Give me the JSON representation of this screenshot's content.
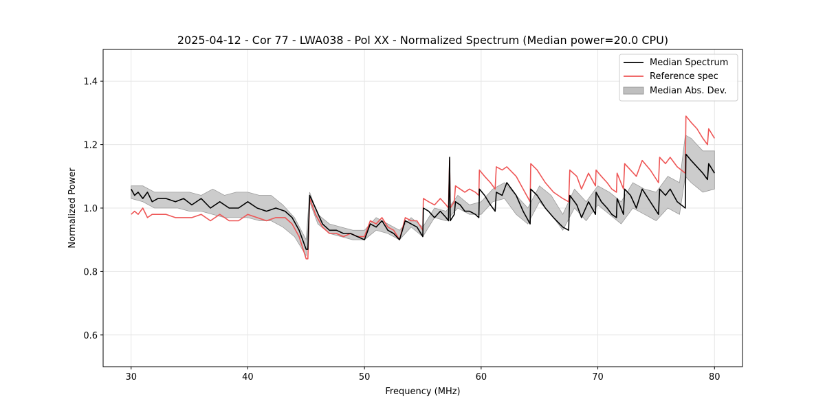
{
  "chart_data": {
    "type": "line",
    "title": "2025-04-12 - Cor 77 - LWA038 - Pol XX - Normalized Spectrum (Median power=20.0 CPU)",
    "xlabel": "Frequency (MHz)",
    "ylabel": "Normalized Power",
    "xlim": [
      27.6,
      82.4
    ],
    "ylim": [
      0.5,
      1.5
    ],
    "xticks": [
      30,
      40,
      50,
      60,
      70,
      80
    ],
    "xtick_labels": [
      "30",
      "40",
      "50",
      "60",
      "70",
      "80"
    ],
    "yticks": [
      0.6,
      0.8,
      1.0,
      1.2,
      1.4
    ],
    "ytick_labels": [
      "0.6",
      "0.8",
      "1.0",
      "1.2",
      "1.4"
    ],
    "grid": true,
    "legend_position": "top-right",
    "colors": {
      "median": "#000000",
      "reference": "#ee5555",
      "mad_fill": "#bfbfbf",
      "mad_edge": "#9a9a9a"
    },
    "series": [
      {
        "name": "Median Spectrum",
        "x": [
          30.0,
          30.3,
          30.6,
          31.0,
          31.4,
          31.8,
          32.3,
          33.0,
          33.8,
          34.5,
          35.2,
          36.0,
          36.8,
          37.6,
          38.4,
          39.2,
          40.0,
          40.8,
          41.6,
          42.4,
          43.2,
          43.8,
          44.4,
          45.0,
          45.15,
          45.3,
          45.8,
          46.4,
          47.0,
          47.6,
          48.2,
          48.8,
          49.4,
          50.0,
          50.5,
          51.0,
          51.5,
          52.0,
          52.5,
          53.0,
          53.5,
          54.0,
          54.5,
          55.0,
          55.05,
          55.5,
          56.0,
          56.5,
          57.0,
          57.2,
          57.3,
          57.35,
          57.7,
          57.8,
          58.2,
          58.6,
          59.0,
          59.5,
          59.8,
          59.85,
          60.3,
          60.8,
          61.2,
          61.3,
          61.8,
          62.2,
          63.0,
          63.6,
          64.2,
          64.25,
          64.8,
          65.5,
          66.2,
          67.0,
          67.5,
          67.6,
          68.2,
          68.6,
          69.2,
          69.8,
          69.85,
          70.3,
          70.8,
          71.2,
          71.6,
          71.65,
          72.2,
          72.3,
          72.8,
          73.3,
          73.8,
          74.5,
          75.2,
          75.3,
          75.8,
          76.2,
          76.8,
          77.5,
          77.55,
          78.0,
          78.5,
          79.0,
          79.4,
          79.5,
          80.0
        ],
        "values": [
          1.06,
          1.04,
          1.05,
          1.03,
          1.05,
          1.02,
          1.03,
          1.03,
          1.02,
          1.03,
          1.01,
          1.03,
          1.0,
          1.02,
          1.0,
          1.0,
          1.02,
          1.0,
          0.99,
          1.0,
          0.99,
          0.97,
          0.93,
          0.87,
          0.87,
          1.04,
          1.0,
          0.95,
          0.93,
          0.93,
          0.92,
          0.92,
          0.91,
          0.9,
          0.95,
          0.94,
          0.96,
          0.93,
          0.92,
          0.9,
          0.96,
          0.95,
          0.94,
          0.91,
          1.0,
          0.99,
          0.97,
          0.99,
          0.97,
          0.96,
          1.16,
          0.96,
          0.98,
          1.02,
          1.01,
          0.99,
          0.99,
          0.98,
          0.97,
          1.06,
          1.04,
          1.01,
          0.99,
          1.05,
          1.04,
          1.08,
          1.04,
          0.99,
          0.95,
          1.06,
          1.04,
          1.0,
          0.97,
          0.94,
          0.93,
          1.04,
          1.01,
          0.97,
          1.02,
          0.98,
          1.05,
          1.02,
          1.0,
          0.98,
          0.97,
          1.03,
          0.98,
          1.06,
          1.04,
          1.0,
          1.06,
          1.02,
          0.98,
          1.06,
          1.04,
          1.06,
          1.02,
          1.0,
          1.17,
          1.15,
          1.13,
          1.11,
          1.09,
          1.14,
          1.11
        ]
      },
      {
        "name": "Reference spec",
        "x": [
          30.0,
          30.3,
          30.6,
          31.0,
          31.4,
          31.8,
          32.3,
          33.0,
          33.8,
          34.5,
          35.2,
          36.0,
          36.8,
          37.6,
          38.4,
          39.2,
          40.0,
          40.8,
          41.6,
          42.4,
          43.2,
          43.8,
          44.4,
          45.0,
          45.15,
          45.3,
          45.8,
          46.4,
          47.0,
          47.6,
          48.2,
          48.8,
          49.4,
          50.0,
          50.5,
          51.0,
          51.5,
          52.0,
          52.5,
          53.0,
          53.5,
          54.0,
          54.5,
          55.0,
          55.05,
          55.5,
          56.0,
          56.5,
          57.0,
          57.2,
          57.3,
          57.35,
          57.7,
          57.8,
          58.2,
          58.6,
          59.0,
          59.5,
          59.8,
          59.85,
          60.3,
          60.8,
          61.2,
          61.3,
          61.8,
          62.2,
          63.0,
          63.6,
          64.2,
          64.25,
          64.8,
          65.5,
          66.2,
          67.0,
          67.5,
          67.6,
          68.2,
          68.6,
          69.2,
          69.8,
          69.85,
          70.3,
          70.8,
          71.2,
          71.6,
          71.65,
          72.2,
          72.3,
          72.8,
          73.3,
          73.8,
          74.5,
          75.2,
          75.3,
          75.8,
          76.2,
          76.8,
          77.5,
          77.55,
          78.0,
          78.5,
          79.0,
          79.4,
          79.5,
          80.0
        ],
        "values": [
          0.98,
          0.99,
          0.98,
          1.0,
          0.97,
          0.98,
          0.98,
          0.98,
          0.97,
          0.97,
          0.97,
          0.98,
          0.96,
          0.98,
          0.96,
          0.96,
          0.98,
          0.97,
          0.96,
          0.97,
          0.97,
          0.95,
          0.91,
          0.84,
          0.84,
          1.03,
          0.98,
          0.94,
          0.92,
          0.92,
          0.91,
          0.92,
          0.91,
          0.91,
          0.96,
          0.95,
          0.97,
          0.94,
          0.93,
          0.9,
          0.97,
          0.96,
          0.96,
          0.93,
          1.03,
          1.02,
          1.01,
          1.03,
          1.01,
          1.0,
          1.15,
          1.0,
          1.02,
          1.07,
          1.06,
          1.05,
          1.06,
          1.05,
          1.04,
          1.12,
          1.1,
          1.08,
          1.06,
          1.13,
          1.12,
          1.13,
          1.1,
          1.06,
          1.02,
          1.14,
          1.12,
          1.08,
          1.05,
          1.03,
          1.02,
          1.12,
          1.1,
          1.06,
          1.11,
          1.07,
          1.12,
          1.1,
          1.08,
          1.06,
          1.05,
          1.11,
          1.06,
          1.14,
          1.12,
          1.1,
          1.15,
          1.12,
          1.08,
          1.16,
          1.14,
          1.16,
          1.13,
          1.11,
          1.29,
          1.27,
          1.25,
          1.22,
          1.2,
          1.25,
          1.22
        ]
      },
      {
        "name": "Median Abs. Dev.",
        "type": "band",
        "x": [
          30.0,
          31.0,
          32.0,
          33.0,
          34.0,
          35.0,
          36.0,
          37.0,
          38.0,
          39.0,
          40.0,
          41.0,
          42.0,
          43.0,
          44.0,
          45.0,
          45.3,
          46.0,
          47.0,
          48.0,
          49.0,
          50.0,
          51.0,
          52.0,
          53.0,
          54.0,
          55.0,
          56.0,
          57.0,
          58.0,
          59.0,
          60.0,
          61.0,
          62.0,
          63.0,
          64.0,
          65.0,
          66.0,
          67.0,
          68.0,
          69.0,
          70.0,
          71.0,
          72.0,
          73.0,
          74.0,
          75.0,
          76.0,
          77.0,
          77.5,
          78.0,
          79.0,
          80.0
        ],
        "lower": [
          1.03,
          1.02,
          1.0,
          1.0,
          1.0,
          0.99,
          0.99,
          0.98,
          0.97,
          0.97,
          0.97,
          0.96,
          0.96,
          0.94,
          0.91,
          0.85,
          1.02,
          0.95,
          0.92,
          0.91,
          0.9,
          0.9,
          0.93,
          0.92,
          0.9,
          0.94,
          0.91,
          0.97,
          0.96,
          1.0,
          0.98,
          0.98,
          1.02,
          1.03,
          0.98,
          0.95,
          1.02,
          0.98,
          0.93,
          1.0,
          0.96,
          1.01,
          0.98,
          0.95,
          1.0,
          0.98,
          0.96,
          1.0,
          0.98,
          1.1,
          1.08,
          1.05,
          1.06
        ],
        "upper": [
          1.07,
          1.07,
          1.05,
          1.05,
          1.05,
          1.05,
          1.04,
          1.06,
          1.04,
          1.05,
          1.05,
          1.04,
          1.04,
          1.01,
          0.97,
          0.9,
          1.05,
          0.98,
          0.95,
          0.94,
          0.93,
          0.93,
          0.97,
          0.95,
          0.93,
          0.97,
          0.94,
          1.0,
          0.99,
          1.04,
          1.01,
          1.02,
          1.06,
          1.08,
          1.04,
          1.0,
          1.07,
          1.04,
          0.98,
          1.06,
          1.02,
          1.07,
          1.05,
          1.02,
          1.08,
          1.06,
          1.05,
          1.1,
          1.08,
          1.23,
          1.22,
          1.18,
          1.18
        ]
      }
    ]
  }
}
